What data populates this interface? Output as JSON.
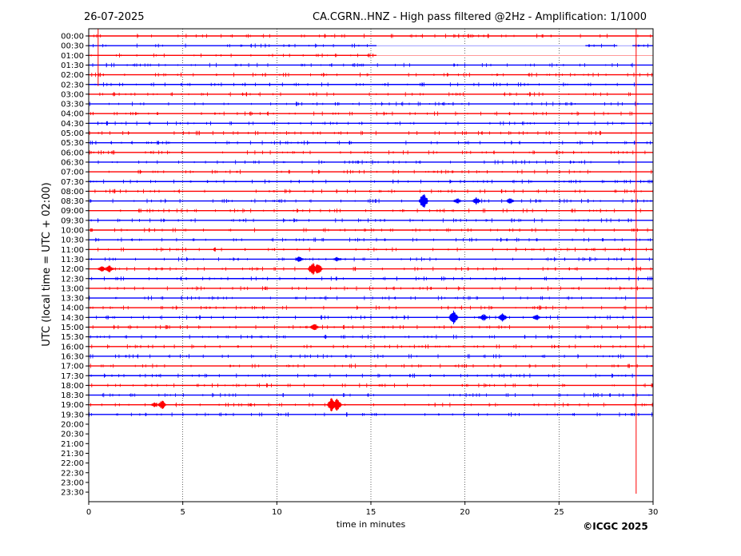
{
  "header": {
    "date": "26-07-2025",
    "title": "CA.CGRN..HNZ - High pass filtered @2Hz - Amplification: 1/1000"
  },
  "footer": {
    "copyright": "©ICGC 2025"
  },
  "chart_data": {
    "type": "line",
    "title": "CA.CGRN..HNZ - High pass filtered @2Hz - Amplification: 1/1000",
    "xlabel": "time in minutes",
    "ylabel": "UTC (local time = UTC + 02:00)",
    "xlim": [
      0,
      30
    ],
    "xticks": [
      0,
      5,
      10,
      15,
      20,
      25,
      30
    ],
    "grid": "vertical dotted at x ticks",
    "row_labels": [
      "00:00",
      "00:30",
      "01:00",
      "01:30",
      "02:00",
      "02:30",
      "03:00",
      "03:30",
      "04:00",
      "04:30",
      "05:00",
      "05:30",
      "06:00",
      "06:30",
      "07:00",
      "07:30",
      "08:00",
      "08:30",
      "09:00",
      "09:30",
      "10:00",
      "10:30",
      "11:00",
      "11:30",
      "12:00",
      "12:30",
      "13:00",
      "13:30",
      "14:00",
      "14:30",
      "15:00",
      "15:30",
      "16:00",
      "16:30",
      "17:00",
      "17:30",
      "18:00",
      "18:30",
      "19:00",
      "19:30",
      "20:00",
      "20:30",
      "21:00",
      "21:30",
      "22:00",
      "22:30",
      "23:00",
      "23:30"
    ],
    "colors": {
      "even_rows": "#ff0000",
      "odd_rows": "#0000ff"
    },
    "recorded_rows": 40,
    "gaps": [
      {
        "row": "00:30",
        "from": 15.3,
        "to": 26.4
      },
      {
        "row": "00:30",
        "from": 28.1,
        "to": 28.9
      },
      {
        "row": "01:00",
        "from": 15.3,
        "to": 30
      }
    ],
    "spikes": [
      {
        "row": "00:00",
        "minute": 0.5,
        "span_rows": 6
      },
      {
        "row": "00:00",
        "minute": 29.1,
        "span_rows": 48
      }
    ],
    "events": [
      {
        "row": "08:30",
        "minute": 17.8,
        "amp": 12
      },
      {
        "row": "08:30",
        "minute": 19.6,
        "amp": 4
      },
      {
        "row": "08:30",
        "minute": 20.6,
        "amp": 5
      },
      {
        "row": "08:30",
        "minute": 22.4,
        "amp": 4
      },
      {
        "row": "11:30",
        "minute": 11.2,
        "amp": 4
      },
      {
        "row": "11:30",
        "minute": 13.2,
        "amp": 3
      },
      {
        "row": "12:00",
        "minute": 0.7,
        "amp": 4
      },
      {
        "row": "12:00",
        "minute": 1.1,
        "amp": 5
      },
      {
        "row": "12:00",
        "minute": 11.9,
        "amp": 9
      },
      {
        "row": "12:00",
        "minute": 12.2,
        "amp": 8
      },
      {
        "row": "14:30",
        "minute": 19.4,
        "amp": 11
      },
      {
        "row": "14:30",
        "minute": 21.0,
        "amp": 5
      },
      {
        "row": "14:30",
        "minute": 22.0,
        "amp": 6
      },
      {
        "row": "14:30",
        "minute": 23.8,
        "amp": 4
      },
      {
        "row": "15:00",
        "minute": 12.0,
        "amp": 5
      },
      {
        "row": "19:00",
        "minute": 3.5,
        "amp": 3
      },
      {
        "row": "19:00",
        "minute": 3.9,
        "amp": 6
      },
      {
        "row": "19:00",
        "minute": 12.9,
        "amp": 9
      },
      {
        "row": "19:00",
        "minute": 13.2,
        "amp": 9
      }
    ]
  }
}
